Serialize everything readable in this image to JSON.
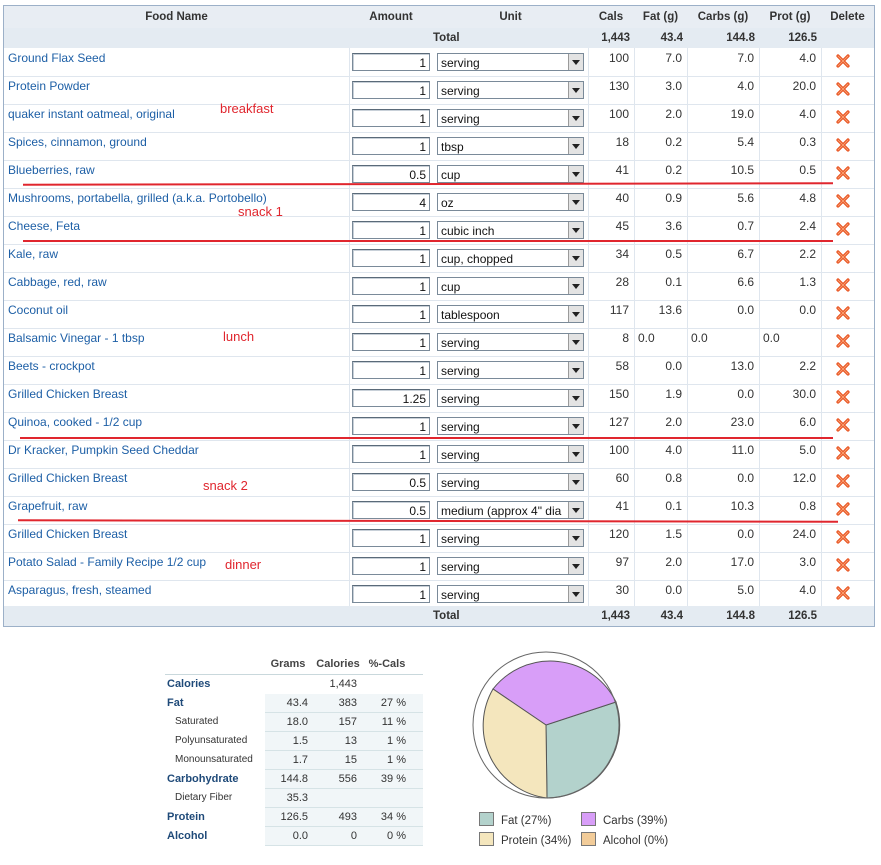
{
  "headers": {
    "food": "Food Name",
    "amount": "Amount",
    "unit": "Unit",
    "cals": "Cals",
    "fat": "Fat (g)",
    "carbs": "Carbs (g)",
    "prot": "Prot (g)",
    "delete": "Delete"
  },
  "totals": {
    "label": "Total",
    "cals": "1,443",
    "fat": "43.4",
    "carbs": "144.8",
    "prot": "126.5"
  },
  "foods": [
    {
      "name": "Ground Flax Seed",
      "amount": "1",
      "unit": "serving",
      "cals": "100",
      "fat": "7.0",
      "carbs": "7.0",
      "prot": "4.0"
    },
    {
      "name": "Protein Powder",
      "amount": "1",
      "unit": "serving",
      "cals": "130",
      "fat": "3.0",
      "carbs": "4.0",
      "prot": "20.0"
    },
    {
      "name": "quaker instant oatmeal, original",
      "amount": "1",
      "unit": "serving",
      "cals": "100",
      "fat": "2.0",
      "carbs": "19.0",
      "prot": "4.0"
    },
    {
      "name": "Spices, cinnamon, ground",
      "amount": "1",
      "unit": "tbsp",
      "cals": "18",
      "fat": "0.2",
      "carbs": "5.4",
      "prot": "0.3"
    },
    {
      "name": "Blueberries, raw",
      "amount": "0.5",
      "unit": "cup",
      "cals": "41",
      "fat": "0.2",
      "carbs": "10.5",
      "prot": "0.5"
    },
    {
      "name": "Mushrooms, portabella, grilled (a.k.a. Portobello)",
      "amount": "4",
      "unit": "oz",
      "cals": "40",
      "fat": "0.9",
      "carbs": "5.6",
      "prot": "4.8"
    },
    {
      "name": "Cheese, Feta",
      "amount": "1",
      "unit": "cubic inch",
      "cals": "45",
      "fat": "3.6",
      "carbs": "0.7",
      "prot": "2.4"
    },
    {
      "name": "Kale, raw",
      "amount": "1",
      "unit": "cup, chopped",
      "cals": "34",
      "fat": "0.5",
      "carbs": "6.7",
      "prot": "2.2"
    },
    {
      "name": "Cabbage, red, raw",
      "amount": "1",
      "unit": "cup",
      "cals": "28",
      "fat": "0.1",
      "carbs": "6.6",
      "prot": "1.3"
    },
    {
      "name": "Coconut oil",
      "amount": "1",
      "unit": "tablespoon",
      "cals": "117",
      "fat": "13.6",
      "carbs": "0.0",
      "prot": "0.0"
    },
    {
      "name": "Balsamic Vinegar - 1 tbsp",
      "amount": "1",
      "unit": "serving",
      "cals": "8",
      "fat": "0.0",
      "carbs": "0.0",
      "prot": "0.0"
    },
    {
      "name": "Beets - crockpot",
      "amount": "1",
      "unit": "serving",
      "cals": "58",
      "fat": "0.0",
      "carbs": "13.0",
      "prot": "2.2"
    },
    {
      "name": "Grilled Chicken Breast",
      "amount": "1.25",
      "unit": "serving",
      "cals": "150",
      "fat": "1.9",
      "carbs": "0.0",
      "prot": "30.0"
    },
    {
      "name": "Quinoa, cooked - 1/2 cup",
      "amount": "1",
      "unit": "serving",
      "cals": "127",
      "fat": "2.0",
      "carbs": "23.0",
      "prot": "6.0"
    },
    {
      "name": "Dr Kracker, Pumpkin Seed Cheddar",
      "amount": "1",
      "unit": "serving",
      "cals": "100",
      "fat": "4.0",
      "carbs": "11.0",
      "prot": "5.0"
    },
    {
      "name": "Grilled Chicken Breast",
      "amount": "0.5",
      "unit": "serving",
      "cals": "60",
      "fat": "0.8",
      "carbs": "0.0",
      "prot": "12.0"
    },
    {
      "name": "Grapefruit, raw",
      "amount": "0.5",
      "unit": "medium (approx 4\" dia",
      "cals": "41",
      "fat": "0.1",
      "carbs": "10.3",
      "prot": "0.8"
    },
    {
      "name": "Grilled Chicken Breast",
      "amount": "1",
      "unit": "serving",
      "cals": "120",
      "fat": "1.5",
      "carbs": "0.0",
      "prot": "24.0"
    },
    {
      "name": "Potato Salad - Family Recipe 1/2 cup",
      "amount": "1",
      "unit": "serving",
      "cals": "97",
      "fat": "2.0",
      "carbs": "17.0",
      "prot": "3.0"
    },
    {
      "name": "Asparagus, fresh, steamed",
      "amount": "1",
      "unit": "serving",
      "cals": "30",
      "fat": "0.0",
      "carbs": "5.0",
      "prot": "4.0"
    }
  ],
  "annotations": {
    "breakfast": "breakfast",
    "snack1": "snack 1",
    "lunch": "lunch",
    "snack2": "snack 2",
    "dinner": "dinner"
  },
  "summary": {
    "headers": {
      "grams": "Grams",
      "calories": "Calories",
      "pcals": "%-Cals"
    },
    "rows": [
      {
        "label": "Calories",
        "grams": "",
        "calories": "1,443",
        "pcals": "",
        "sub": false
      },
      {
        "label": "Fat",
        "grams": "43.4",
        "calories": "383",
        "pcals": "27 %",
        "sub": false
      },
      {
        "label": "Saturated",
        "grams": "18.0",
        "calories": "157",
        "pcals": "11 %",
        "sub": true
      },
      {
        "label": "Polyunsaturated",
        "grams": "1.5",
        "calories": "13",
        "pcals": "1 %",
        "sub": true
      },
      {
        "label": "Monounsaturated",
        "grams": "1.7",
        "calories": "15",
        "pcals": "1 %",
        "sub": true
      },
      {
        "label": "Carbohydrate",
        "grams": "144.8",
        "calories": "556",
        "pcals": "39 %",
        "sub": false
      },
      {
        "label": "Dietary Fiber",
        "grams": "35.3",
        "calories": "",
        "pcals": "",
        "sub": true
      },
      {
        "label": "Protein",
        "grams": "126.5",
        "calories": "493",
        "pcals": "34 %",
        "sub": false
      },
      {
        "label": "Alcohol",
        "grams": "0.0",
        "calories": "0",
        "pcals": "0 %",
        "sub": false
      }
    ]
  },
  "pie_legend": [
    {
      "label": "Fat  (27%)",
      "color": "#b3d2cc"
    },
    {
      "label": "Carbs  (39%)",
      "color": "#d89ef8"
    },
    {
      "label": "Protein  (34%)",
      "color": "#f4e6bd"
    },
    {
      "label": "Alcohol  (0%)",
      "color": "#f2cc99"
    }
  ],
  "colors": {
    "link": "#1d5fa6",
    "annotation": "#e0262e",
    "header_bg": "#e8edf3"
  }
}
